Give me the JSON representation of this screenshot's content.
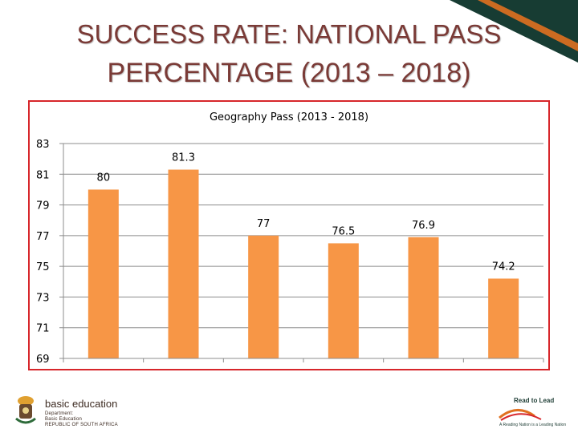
{
  "slide": {
    "title_line1": "SUCCESS RATE: NATIONAL PASS",
    "title_line2": "PERCENTAGE (2013 – 2018)"
  },
  "footer": {
    "brand_name": "basic education",
    "brand_sub1": "Department:",
    "brand_sub2": "Basic Education",
    "brand_sub3": "REPUBLIC OF SOUTH AFRICA",
    "rtl_title": "Read to Lead",
    "rtl_tagline": "A Reading Nation is a Leading Nation"
  },
  "colors": {
    "bar": "#f79646",
    "frame_border": "#d7262b",
    "title_text": "#7a3a36",
    "corner_dark": "#173c33",
    "corner_accent": "#e0701f"
  },
  "chart_data": {
    "type": "bar",
    "title": "Geography Pass (2013 - 2018)",
    "categories": [
      "",
      "",
      "",
      "",
      "",
      ""
    ],
    "values": [
      80,
      81.3,
      77,
      76.5,
      76.9,
      74.2
    ],
    "data_labels": [
      "80",
      "81.3",
      "77",
      "76.5",
      "76.9",
      "74.2"
    ],
    "ylim": [
      69,
      83
    ],
    "yticks": [
      83,
      81,
      79,
      77,
      75,
      73,
      71,
      69
    ],
    "grid": true,
    "legend": "none"
  }
}
